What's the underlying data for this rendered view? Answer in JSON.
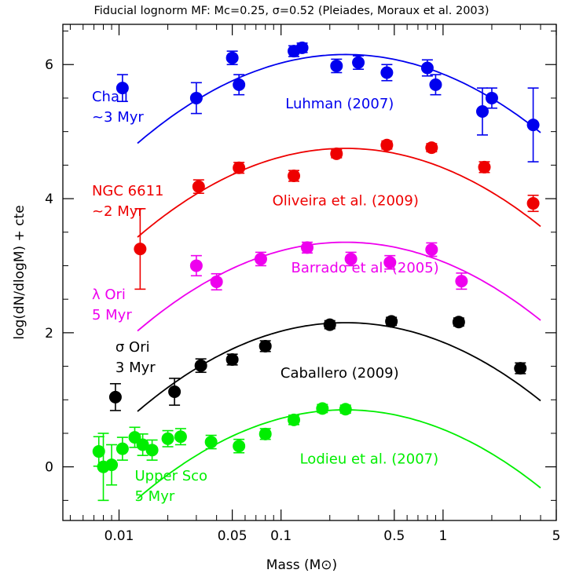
{
  "chart_data": {
    "type": "scatter",
    "title": "Fiducial lognorm MF: Mc=0.25, σ=0.52 (Pleiades, Moraux et al. 2003)",
    "xlabel": "Mass (M⊙)",
    "ylabel": "log(dN/dlogM) + cte",
    "x_scale": "log",
    "xlim": [
      0.0045,
      5
    ],
    "ylim": [
      -0.8,
      6.6
    ],
    "x_ticks": [
      0.01,
      0.05,
      0.1,
      0.5,
      1,
      5
    ],
    "x_tick_labels": [
      "0.01",
      "0.05",
      "0.1",
      "0.5",
      "1",
      "5"
    ],
    "y_ticks": [
      0,
      2,
      4,
      6
    ],
    "y_tick_labels": [
      "0",
      "2",
      "4",
      "6"
    ],
    "model": {
      "Mc": 0.25,
      "sigma": 0.52
    },
    "series": [
      {
        "name": "Cha I ~3 Myr",
        "label_lines": [
          "Cha I",
          "~3 Myr"
        ],
        "reference": "Luhman (2007)",
        "color": "#0000ee",
        "curve": {
          "peak": 6.15,
          "xmin": 0.013,
          "xmax": 4.0
        },
        "points": [
          {
            "x": 0.0105,
            "y": 5.65,
            "err": 0.2
          },
          {
            "x": 0.03,
            "y": 5.5,
            "err": 0.23
          },
          {
            "x": 0.05,
            "y": 6.1,
            "err": 0.1
          },
          {
            "x": 0.055,
            "y": 5.7,
            "err": 0.15
          },
          {
            "x": 0.12,
            "y": 6.2,
            "err": 0.08
          },
          {
            "x": 0.135,
            "y": 6.25,
            "err": 0.07
          },
          {
            "x": 0.22,
            "y": 5.98,
            "err": 0.1
          },
          {
            "x": 0.3,
            "y": 6.03,
            "err": 0.1
          },
          {
            "x": 0.45,
            "y": 5.88,
            "err": 0.12
          },
          {
            "x": 0.8,
            "y": 5.95,
            "err": 0.12
          },
          {
            "x": 0.9,
            "y": 5.7,
            "err": 0.15
          },
          {
            "x": 1.75,
            "y": 5.3,
            "err": 0.35
          },
          {
            "x": 2.0,
            "y": 5.5,
            "err": 0.15
          },
          {
            "x": 3.6,
            "y": 5.1,
            "err": 0.55
          }
        ]
      },
      {
        "name": "NGC 6611 ~2 Myr",
        "label_lines": [
          "NGC 6611",
          "~2 Myr"
        ],
        "reference": "Oliveira et al. (2009)",
        "color": "#ee0000",
        "curve": {
          "peak": 4.75,
          "xmin": 0.013,
          "xmax": 4.0
        },
        "points": [
          {
            "x": 0.0135,
            "y": 3.25,
            "err": 0.6
          },
          {
            "x": 0.031,
            "y": 4.18,
            "err": 0.1
          },
          {
            "x": 0.055,
            "y": 4.46,
            "err": 0.08
          },
          {
            "x": 0.12,
            "y": 4.34,
            "err": 0.08
          },
          {
            "x": 0.22,
            "y": 4.67,
            "err": 0.06
          },
          {
            "x": 0.45,
            "y": 4.8,
            "err": 0.06
          },
          {
            "x": 0.85,
            "y": 4.76,
            "err": 0.06
          },
          {
            "x": 1.8,
            "y": 4.47,
            "err": 0.08
          },
          {
            "x": 3.6,
            "y": 3.93,
            "err": 0.12
          }
        ]
      },
      {
        "name": "λ Ori 5 Myr",
        "label_lines": [
          "λ Ori",
          "5 Myr"
        ],
        "reference": "Barrado et al. (2005)",
        "color": "#ee00ee",
        "curve": {
          "peak": 3.35,
          "xmin": 0.013,
          "xmax": 4.0
        },
        "points": [
          {
            "x": 0.03,
            "y": 3.0,
            "err": 0.15
          },
          {
            "x": 0.04,
            "y": 2.76,
            "err": 0.12
          },
          {
            "x": 0.075,
            "y": 3.1,
            "err": 0.1
          },
          {
            "x": 0.145,
            "y": 3.27,
            "err": 0.08
          },
          {
            "x": 0.27,
            "y": 3.1,
            "err": 0.1
          },
          {
            "x": 0.47,
            "y": 3.05,
            "err": 0.1
          },
          {
            "x": 0.85,
            "y": 3.24,
            "err": 0.1
          },
          {
            "x": 1.3,
            "y": 2.77,
            "err": 0.12
          }
        ]
      },
      {
        "name": "σ Ori 3 Myr",
        "label_lines": [
          "σ Ori",
          "3 Myr"
        ],
        "reference": "Caballero (2009)",
        "color": "#000000",
        "curve": {
          "peak": 2.15,
          "xmin": 0.013,
          "xmax": 4.0
        },
        "points": [
          {
            "x": 0.0095,
            "y": 1.04,
            "err": 0.2
          },
          {
            "x": 0.022,
            "y": 1.12,
            "err": 0.2
          },
          {
            "x": 0.032,
            "y": 1.51,
            "err": 0.1
          },
          {
            "x": 0.05,
            "y": 1.6,
            "err": 0.08
          },
          {
            "x": 0.08,
            "y": 1.8,
            "err": 0.08
          },
          {
            "x": 0.2,
            "y": 2.12,
            "err": 0.06
          },
          {
            "x": 0.48,
            "y": 2.17,
            "err": 0.06
          },
          {
            "x": 1.25,
            "y": 2.16,
            "err": 0.06
          },
          {
            "x": 3.0,
            "y": 1.47,
            "err": 0.08
          }
        ]
      },
      {
        "name": "Upper Sco 5 Myr",
        "label_lines": [
          "Upper Sco",
          "5 Myr"
        ],
        "reference": "Lodieu et al. (2007)",
        "color": "#00ee00",
        "curve": {
          "peak": 0.85,
          "xmin": 0.013,
          "xmax": 4.0
        },
        "points": [
          {
            "x": 0.0075,
            "y": 0.23,
            "err": 0.22
          },
          {
            "x": 0.008,
            "y": 0.0,
            "err": 0.5
          },
          {
            "x": 0.009,
            "y": 0.03,
            "err": 0.3
          },
          {
            "x": 0.0105,
            "y": 0.27,
            "err": 0.17
          },
          {
            "x": 0.0125,
            "y": 0.44,
            "err": 0.15
          },
          {
            "x": 0.014,
            "y": 0.33,
            "err": 0.16
          },
          {
            "x": 0.016,
            "y": 0.25,
            "err": 0.15
          },
          {
            "x": 0.02,
            "y": 0.42,
            "err": 0.12
          },
          {
            "x": 0.024,
            "y": 0.45,
            "err": 0.12
          },
          {
            "x": 0.037,
            "y": 0.37,
            "err": 0.1
          },
          {
            "x": 0.055,
            "y": 0.31,
            "err": 0.1
          },
          {
            "x": 0.08,
            "y": 0.49,
            "err": 0.08
          },
          {
            "x": 0.12,
            "y": 0.7,
            "err": 0.07
          },
          {
            "x": 0.18,
            "y": 0.87,
            "err": 0.06
          },
          {
            "x": 0.25,
            "y": 0.86,
            "err": 0.06
          }
        ]
      }
    ]
  }
}
